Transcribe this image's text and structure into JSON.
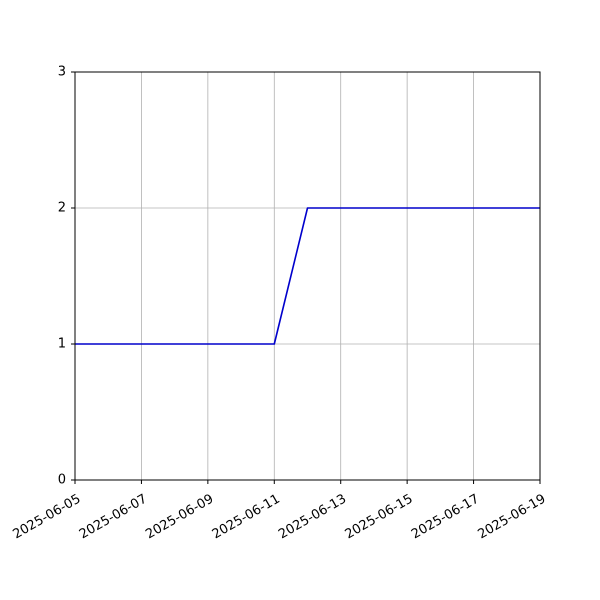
{
  "chart_data": {
    "type": "line",
    "x": [
      "2025-06-05",
      "2025-06-06",
      "2025-06-07",
      "2025-06-08",
      "2025-06-09",
      "2025-06-10",
      "2025-06-11",
      "2025-06-12",
      "2025-06-13",
      "2025-06-14",
      "2025-06-15",
      "2025-06-16",
      "2025-06-17",
      "2025-06-18",
      "2025-06-19"
    ],
    "series": [
      {
        "values": [
          1,
          1,
          1,
          1,
          1,
          1,
          1,
          2,
          2,
          2,
          2,
          2,
          2,
          2,
          2
        ],
        "color": "#0000cc"
      }
    ],
    "xlim": [
      "2025-06-05",
      "2025-06-19"
    ],
    "ylim": [
      0,
      3
    ],
    "x_ticks": [
      "2025-06-05",
      "2025-06-07",
      "2025-06-09",
      "2025-06-11",
      "2025-06-13",
      "2025-06-15",
      "2025-06-17",
      "2025-06-19"
    ],
    "y_ticks": [
      "0",
      "1",
      "2",
      "3"
    ],
    "grid": true,
    "title": "",
    "xlabel": "",
    "ylabel": ""
  }
}
